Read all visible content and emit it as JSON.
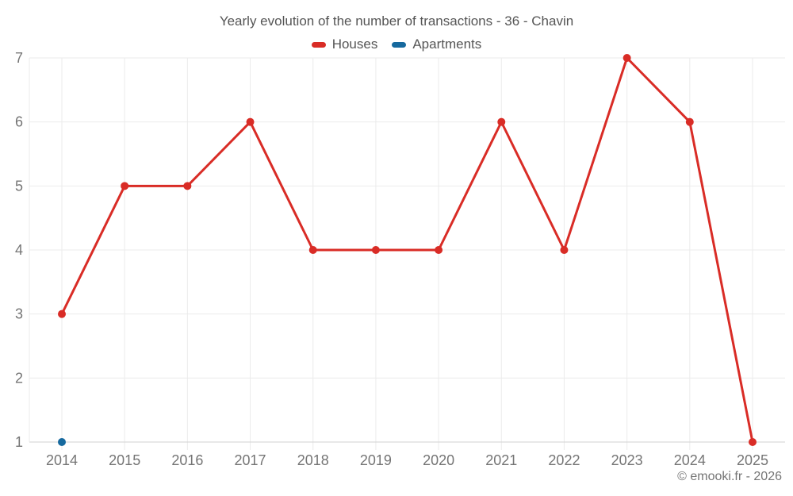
{
  "chart_data": {
    "type": "line",
    "title": "Yearly evolution of the number of transactions - 36 - Chavin",
    "categories": [
      "2014",
      "2015",
      "2016",
      "2017",
      "2018",
      "2019",
      "2020",
      "2021",
      "2022",
      "2023",
      "2024",
      "2025"
    ],
    "series": [
      {
        "name": "Houses",
        "color": "#d92c26",
        "values": [
          3,
          5,
          5,
          6,
          4,
          4,
          4,
          6,
          4,
          7,
          6,
          1
        ]
      },
      {
        "name": "Apartments",
        "color": "#16699e",
        "values": [
          1,
          null,
          null,
          null,
          null,
          null,
          null,
          null,
          null,
          null,
          null,
          null
        ]
      }
    ],
    "xlabel": "",
    "ylabel": "",
    "ylim": [
      1,
      7
    ],
    "yticks": [
      1,
      2,
      3,
      4,
      5,
      6,
      7
    ],
    "grid": true,
    "legend_position": "top"
  },
  "colors": {
    "grid": "#ebebeb",
    "axis": "#d2d2d2",
    "title_text": "#555555",
    "tick_text": "#757575"
  },
  "footer": {
    "copyright": "© emooki.fr - 2026"
  }
}
